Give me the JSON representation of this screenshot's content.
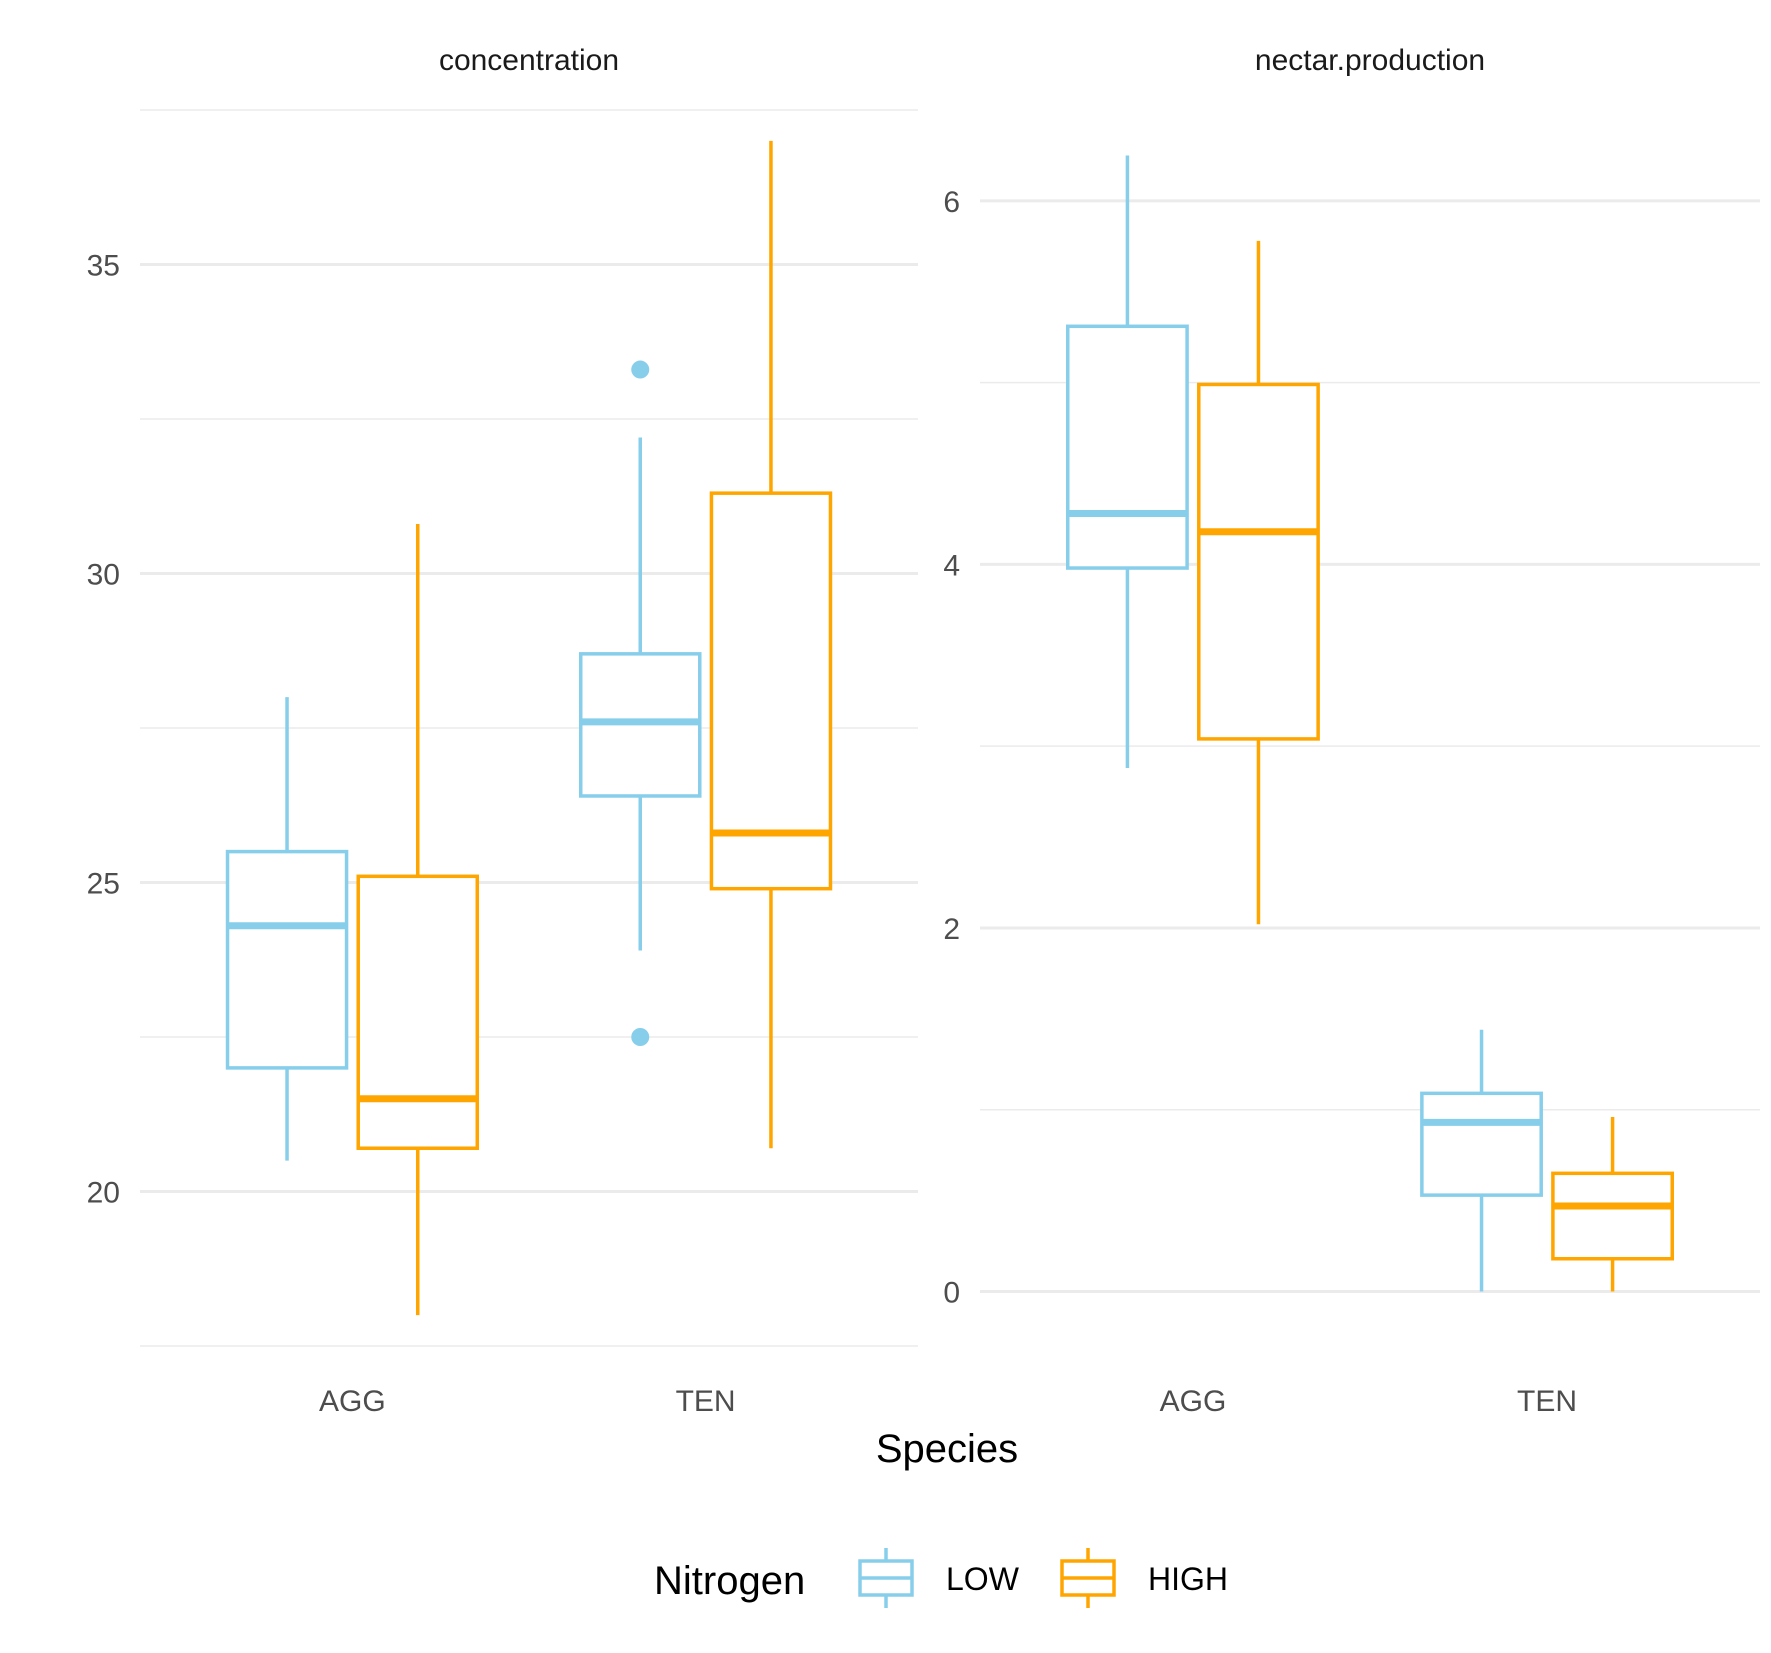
{
  "chart_data": {
    "type": "boxplot",
    "xlabel": "Species",
    "categories": [
      "AGG",
      "TEN"
    ],
    "legend": {
      "title": "Nitrogen",
      "position": "bottom",
      "entries": [
        {
          "name": "LOW",
          "color": "#87ceeb"
        },
        {
          "name": "HIGH",
          "color": "#ffa500"
        }
      ]
    },
    "grid": true,
    "panels": [
      {
        "strip": "concentration",
        "ylim": [
          17.5,
          37.5
        ],
        "yticks": [
          20,
          25,
          30,
          35
        ],
        "ytick_labels": [
          "20",
          "25",
          "30",
          "35"
        ],
        "series": [
          {
            "name": "LOW",
            "boxes": [
              {
                "category": "AGG",
                "lower_whisker": 20.5,
                "q1": 22.0,
                "median": 24.3,
                "q3": 25.5,
                "upper_whisker": 28.0,
                "outliers": []
              },
              {
                "category": "TEN",
                "lower_whisker": 23.9,
                "q1": 26.4,
                "median": 27.6,
                "q3": 28.7,
                "upper_whisker": 32.2,
                "outliers": [
                  33.3,
                  22.5
                ]
              }
            ]
          },
          {
            "name": "HIGH",
            "boxes": [
              {
                "category": "AGG",
                "lower_whisker": 18.0,
                "q1": 20.7,
                "median": 21.5,
                "q3": 25.1,
                "upper_whisker": 30.8,
                "outliers": []
              },
              {
                "category": "TEN",
                "lower_whisker": 20.7,
                "q1": 24.9,
                "median": 25.8,
                "q3": 31.3,
                "upper_whisker": 37.0,
                "outliers": []
              }
            ]
          }
        ]
      },
      {
        "strip": "nectar.production",
        "ylim": [
          -0.3,
          6.5
        ],
        "yticks": [
          0,
          2,
          4,
          6
        ],
        "ytick_labels": [
          "0",
          "2",
          "4",
          "6"
        ],
        "series": [
          {
            "name": "LOW",
            "boxes": [
              {
                "category": "AGG",
                "lower_whisker": 2.88,
                "q1": 3.98,
                "median": 4.28,
                "q3": 5.31,
                "upper_whisker": 6.25,
                "outliers": []
              },
              {
                "category": "TEN",
                "lower_whisker": 0.0,
                "q1": 0.53,
                "median": 0.93,
                "q3": 1.09,
                "upper_whisker": 1.44,
                "outliers": []
              }
            ]
          },
          {
            "name": "HIGH",
            "boxes": [
              {
                "category": "AGG",
                "lower_whisker": 2.02,
                "q1": 3.04,
                "median": 4.18,
                "q3": 4.99,
                "upper_whisker": 5.78,
                "outliers": []
              },
              {
                "category": "TEN",
                "lower_whisker": 0.0,
                "q1": 0.18,
                "median": 0.47,
                "q3": 0.65,
                "upper_whisker": 0.96,
                "outliers": []
              }
            ]
          }
        ]
      }
    ]
  }
}
